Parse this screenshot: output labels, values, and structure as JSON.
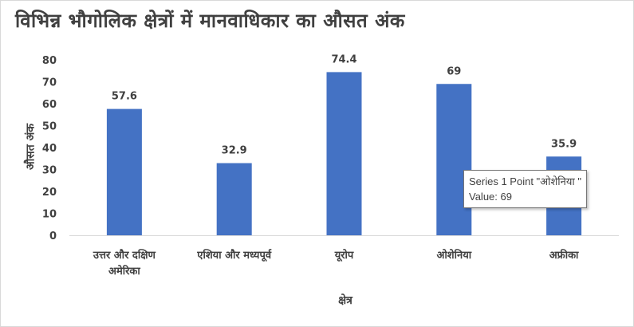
{
  "chart_data": {
    "type": "bar",
    "title": "विभिन्न भौगोलिक क्षेत्रों में मानवाधिकार का औसत अंक",
    "xlabel": "क्षेत्र",
    "ylabel": "औसत अंक",
    "categories": [
      "उत्तर और दक्षिण\nअमेरिका",
      "एशिया और मध्यपूर्व",
      "यूरोप",
      "ओशेनिया",
      "अफ्रीका"
    ],
    "values": [
      57.6,
      32.9,
      74.4,
      69,
      35.9
    ],
    "data_labels": [
      "57.6",
      "32.9",
      "74.4",
      "69",
      "35.9"
    ],
    "ylim": [
      0,
      80
    ],
    "yticks": [
      0,
      10,
      20,
      30,
      40,
      50,
      60,
      70,
      80
    ],
    "grid": false,
    "legend": "none",
    "bar_color": "#4472C4"
  },
  "tooltip": {
    "line1": "Series 1 Point \"ओशेनिया \"",
    "line2": "Value: 69"
  }
}
